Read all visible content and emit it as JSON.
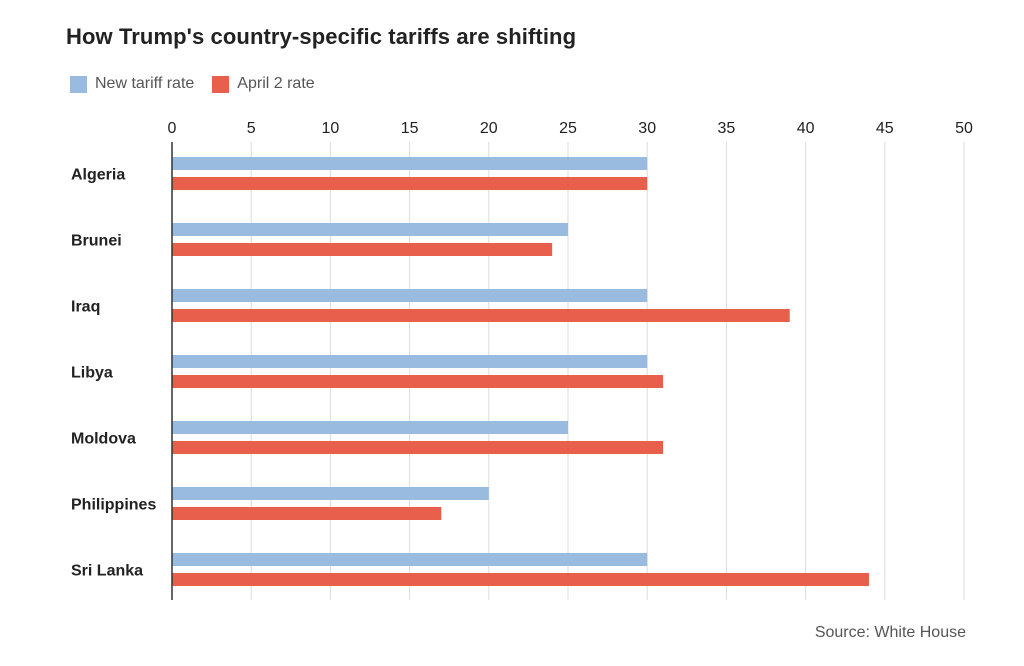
{
  "chart_data": {
    "type": "bar",
    "orientation": "horizontal",
    "title": "How Trump's country-specific tariffs are shifting",
    "categories": [
      "Algeria",
      "Brunei",
      "Iraq",
      "Libya",
      "Moldova",
      "Philippines",
      "Sri Lanka"
    ],
    "series": [
      {
        "name": "New tariff rate",
        "color": "#99bbe0",
        "values": [
          30,
          25,
          30,
          30,
          25,
          20,
          30
        ]
      },
      {
        "name": "April 2 rate",
        "color": "#e8604c",
        "values": [
          30,
          24,
          39,
          31,
          31,
          17,
          44
        ]
      }
    ],
    "xticks": [
      0,
      5,
      10,
      15,
      20,
      25,
      30,
      35,
      40,
      45,
      50
    ],
    "xlim": [
      0,
      50
    ],
    "xaxis_position": "top",
    "grid": true,
    "legend_position": "top-left",
    "source": "Source: White House"
  }
}
